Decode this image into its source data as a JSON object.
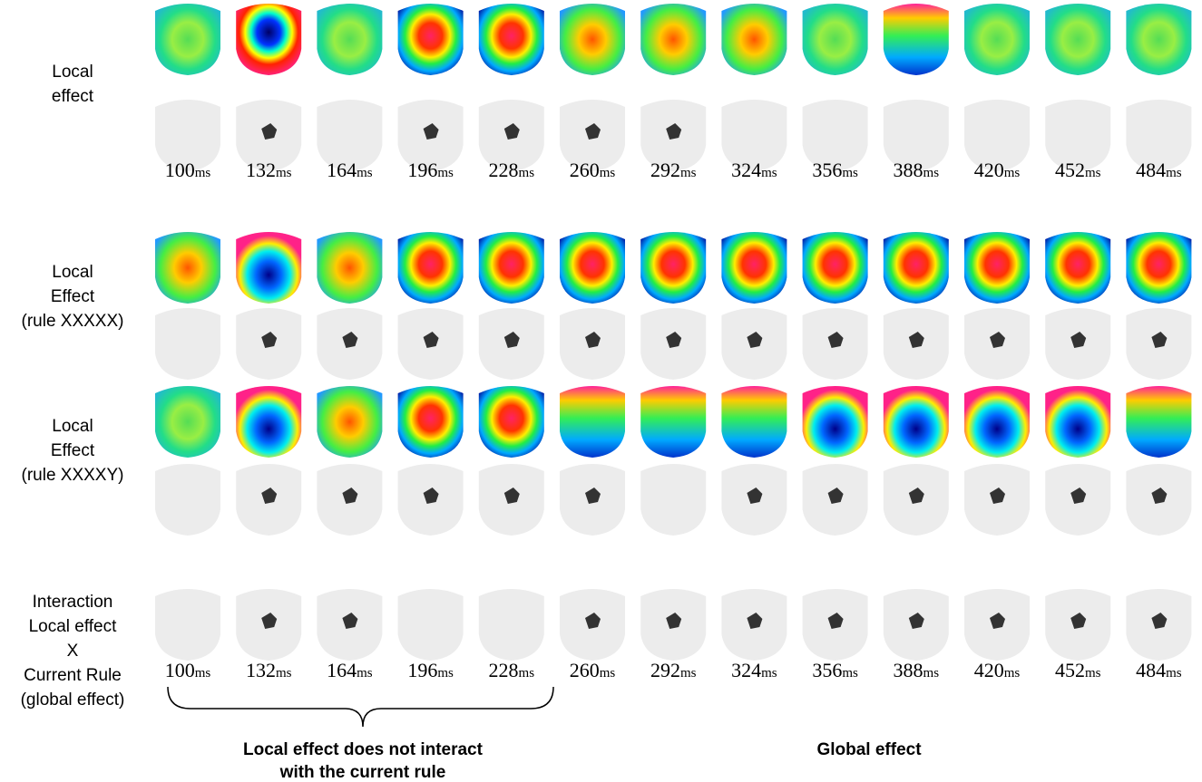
{
  "row_labels": [
    [
      "Local",
      "effect"
    ],
    [
      "Local",
      "Effect",
      "(rule  XXXXX)"
    ],
    [
      "Local",
      "Effect",
      "(rule  XXXXY)"
    ],
    [
      "Interaction",
      "Local  effect",
      "X",
      "Current Rule",
      "(global effect)"
    ]
  ],
  "times": [
    100,
    132,
    164,
    196,
    228,
    260,
    292,
    324,
    356,
    388,
    420,
    452,
    484
  ],
  "unit": "ms",
  "captions": {
    "local": [
      "Local effect does not interact",
      "with the current rule"
    ],
    "global": "Global effect"
  }
}
